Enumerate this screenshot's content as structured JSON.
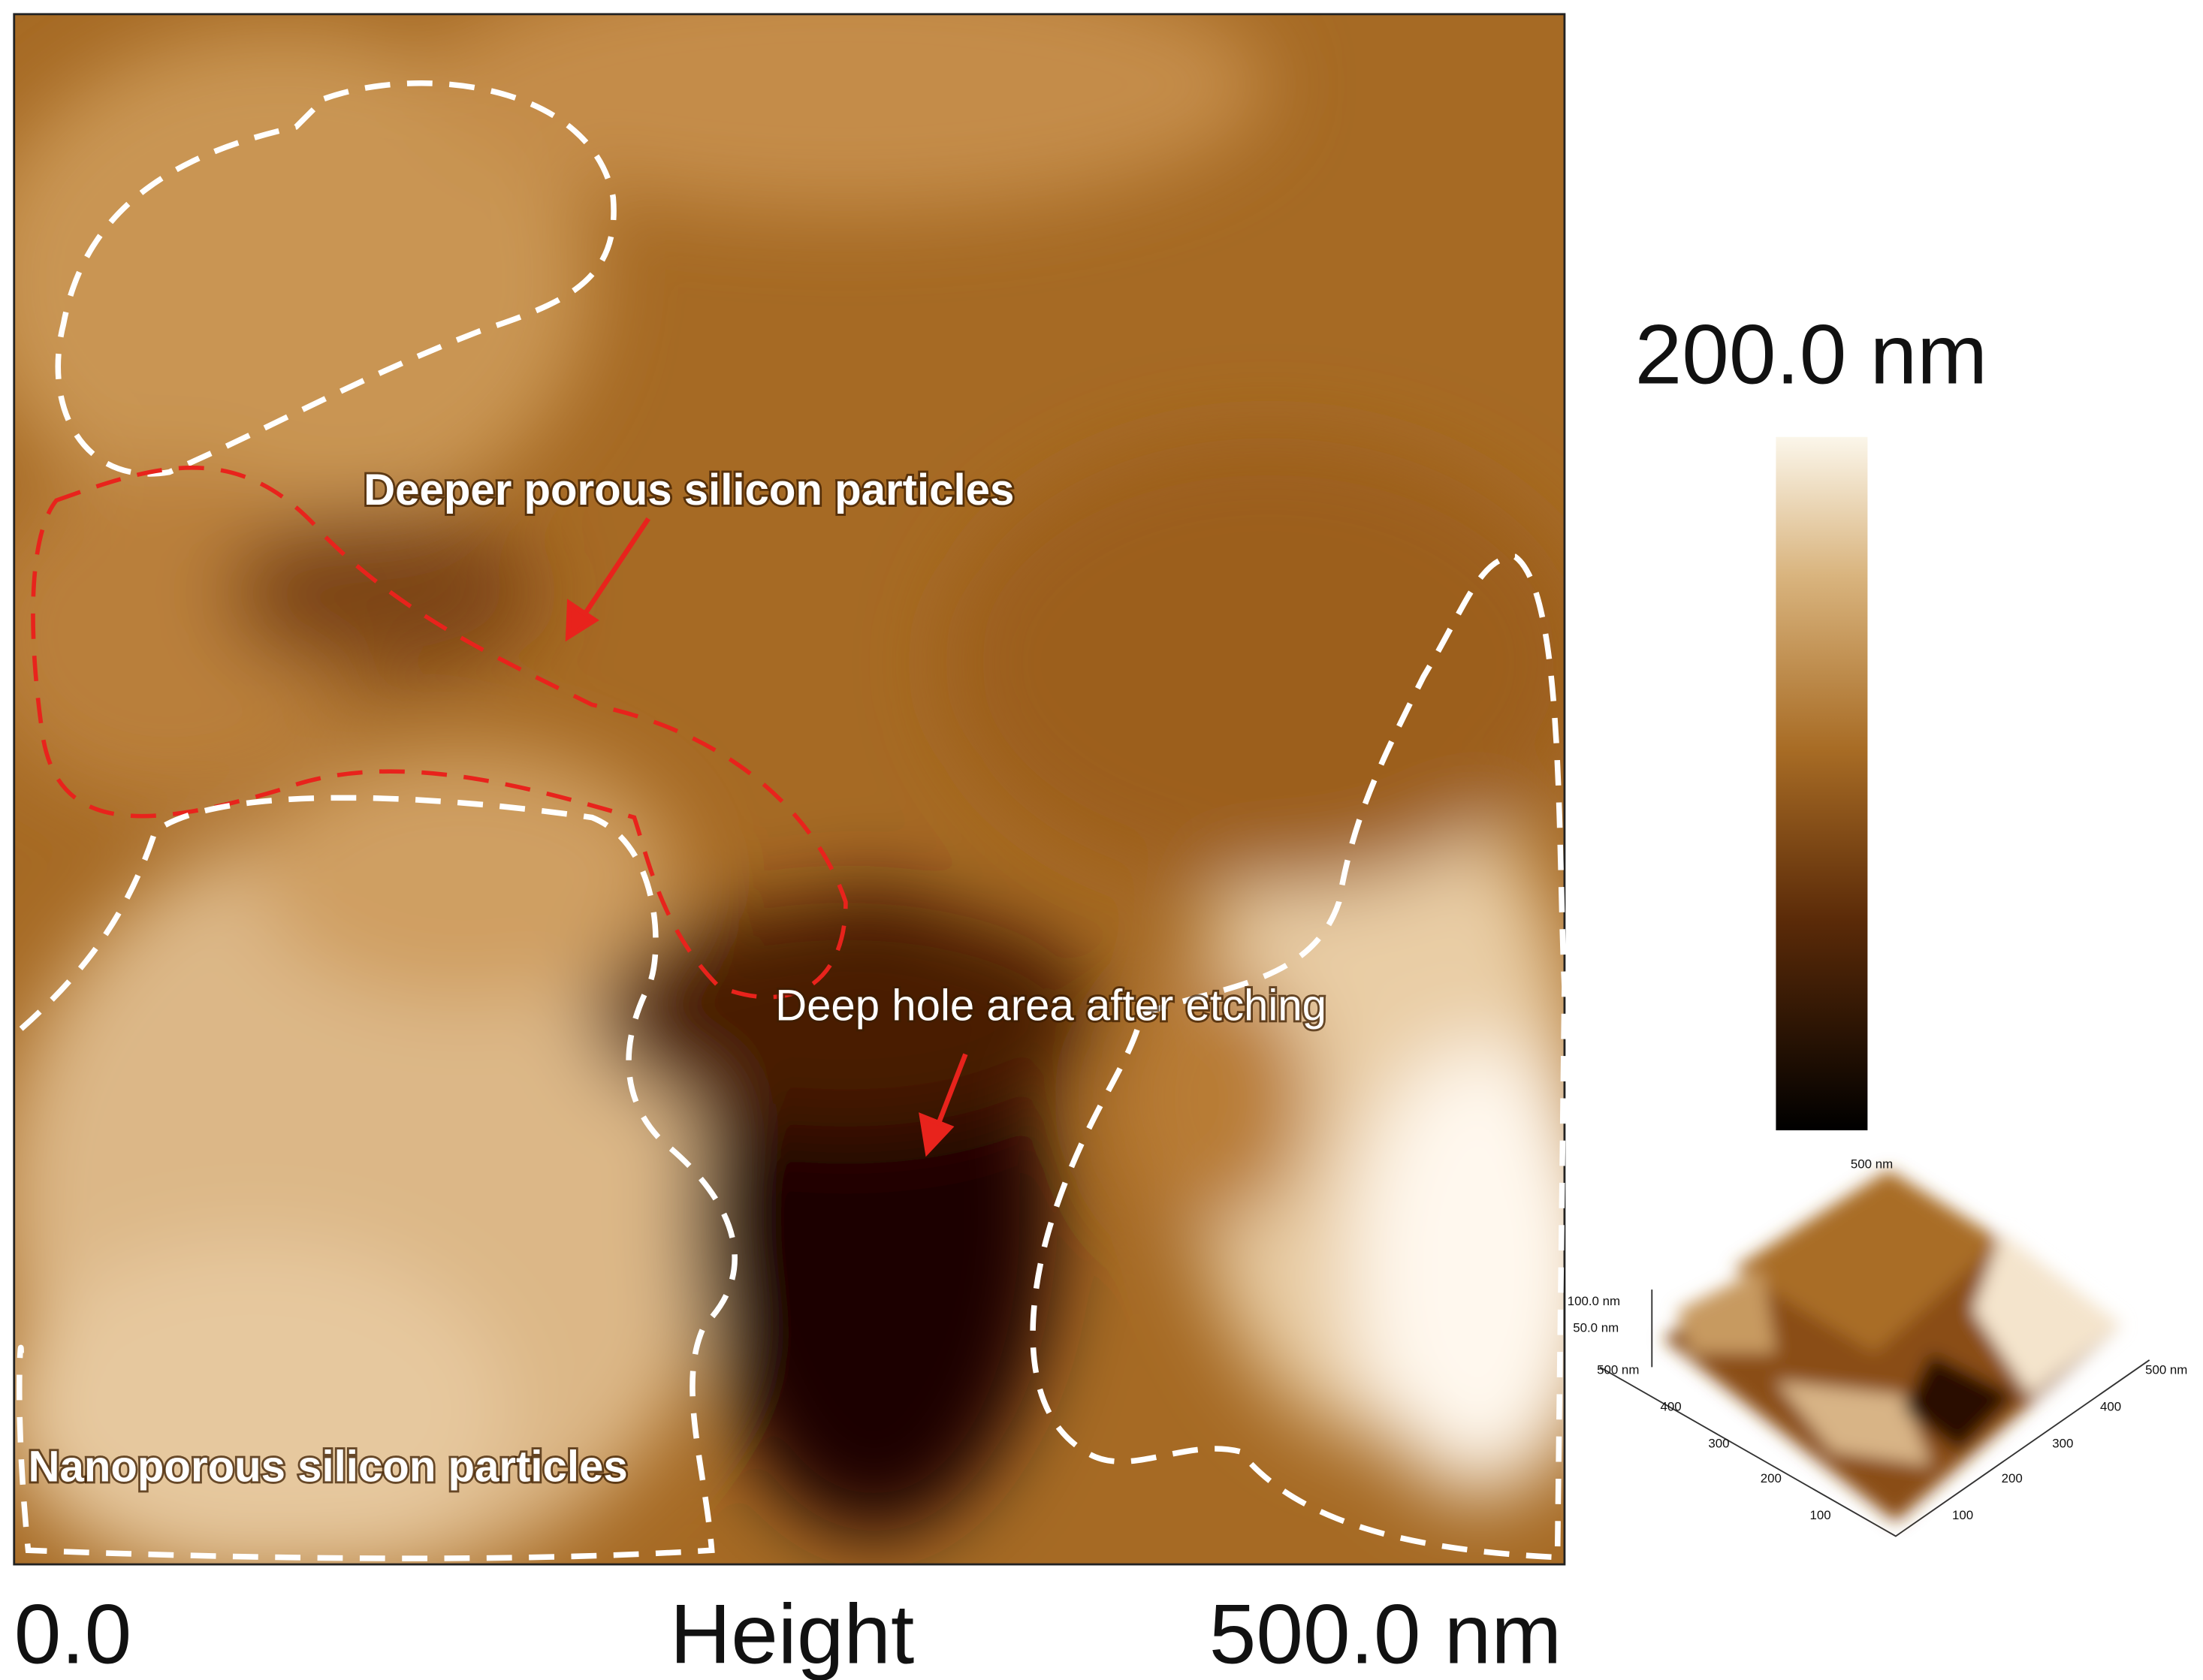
{
  "image_axis": {
    "start_label": "0.0",
    "title": "Height",
    "end_label": "500.0 nm"
  },
  "color_scale": {
    "max_label": "200.0 nm"
  },
  "annotations": [
    "Deeper porous silicon particles",
    "Deep hole area after etching",
    "Nanoporous silicon particles"
  ],
  "inset_3d": {
    "z_labels": [
      "100.0 nm",
      "50.0 nm"
    ],
    "corner_labels": [
      "500 nm",
      "500 nm",
      "500 nm"
    ],
    "left_axis_ticks": [
      "400",
      "300",
      "200",
      "100"
    ],
    "right_axis_ticks": [
      "400",
      "300",
      "200",
      "100"
    ]
  }
}
